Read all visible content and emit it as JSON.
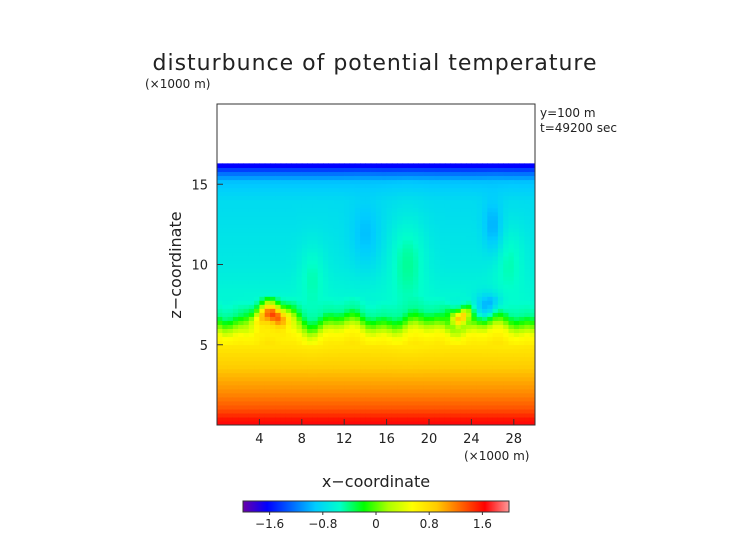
{
  "chart_data": {
    "type": "heatmap",
    "title": "disturbunce of potential temperature",
    "xlabel": "x−coordinate",
    "ylabel": "z−coordinate",
    "x_unit": "(×1000 m)",
    "z_unit": "(×1000 m)",
    "annotations": [
      "y=100 m",
      "t=49200 sec"
    ],
    "xlim": [
      0,
      30
    ],
    "zlim": [
      0,
      20
    ],
    "x_ticks": [
      4,
      8,
      12,
      16,
      20,
      24,
      28
    ],
    "x_tick_labels": [
      "4",
      "8",
      "12",
      "16",
      "20",
      "24",
      "28"
    ],
    "z_ticks": [
      5,
      10,
      15
    ],
    "z_tick_labels": [
      "5",
      "10",
      "15"
    ],
    "data_top_z": 16.3,
    "colorbar": {
      "range": [
        -2.0,
        2.0
      ],
      "ticks": [
        -1.6,
        -0.8,
        0,
        0.8,
        1.6
      ],
      "tick_labels": [
        "−1.6",
        "−0.8",
        "0",
        "0.8",
        "1.6"
      ],
      "colors": [
        "#6a00a8",
        "#0000ff",
        "#0066ff",
        "#00ccff",
        "#00ffcc",
        "#00ff00",
        "#aaff00",
        "#ffff00",
        "#ffcc00",
        "#ff6600",
        "#ff0000",
        "#ff9999"
      ]
    },
    "profile": [
      {
        "z": 0.0,
        "v": 1.7
      },
      {
        "z": 1.0,
        "v": 1.35
      },
      {
        "z": 2.0,
        "v": 1.15
      },
      {
        "z": 3.0,
        "v": 1.0
      },
      {
        "z": 4.0,
        "v": 0.85
      },
      {
        "z": 5.0,
        "v": 0.7
      },
      {
        "z": 5.7,
        "v": 0.55
      },
      {
        "z": 6.2,
        "v": 0.15
      },
      {
        "z": 6.6,
        "v": -0.15
      },
      {
        "z": 7.0,
        "v": -0.45
      },
      {
        "z": 8.0,
        "v": -0.6
      },
      {
        "z": 10.0,
        "v": -0.7
      },
      {
        "z": 12.0,
        "v": -0.75
      },
      {
        "z": 14.0,
        "v": -0.8
      },
      {
        "z": 15.2,
        "v": -0.95
      },
      {
        "z": 15.8,
        "v": -1.3
      },
      {
        "z": 16.3,
        "v": -1.75
      }
    ],
    "features": [
      {
        "x": 5.3,
        "z": 6.6,
        "rx": 2.3,
        "rz": 0.9,
        "v": 1.4
      },
      {
        "x": 23.0,
        "z": 7.0,
        "rx": 1.2,
        "rz": 0.6,
        "v": 1.0
      },
      {
        "x": 9.0,
        "z": 9.0,
        "rx": 1.6,
        "rz": 2.8,
        "v": -0.5
      },
      {
        "x": 18.0,
        "z": 10.0,
        "rx": 2.2,
        "rz": 3.5,
        "v": -0.45
      },
      {
        "x": 27.5,
        "z": 10.0,
        "rx": 2.0,
        "rz": 3.0,
        "v": -0.5
      },
      {
        "x": 14.0,
        "z": 12.0,
        "rx": 1.8,
        "rz": 2.6,
        "v": -0.95
      },
      {
        "x": 26.0,
        "z": 12.5,
        "rx": 1.2,
        "rz": 2.2,
        "v": -1.0
      },
      {
        "x": 25.5,
        "z": 7.5,
        "rx": 1.5,
        "rz": 1.0,
        "v": -1.0
      }
    ]
  }
}
